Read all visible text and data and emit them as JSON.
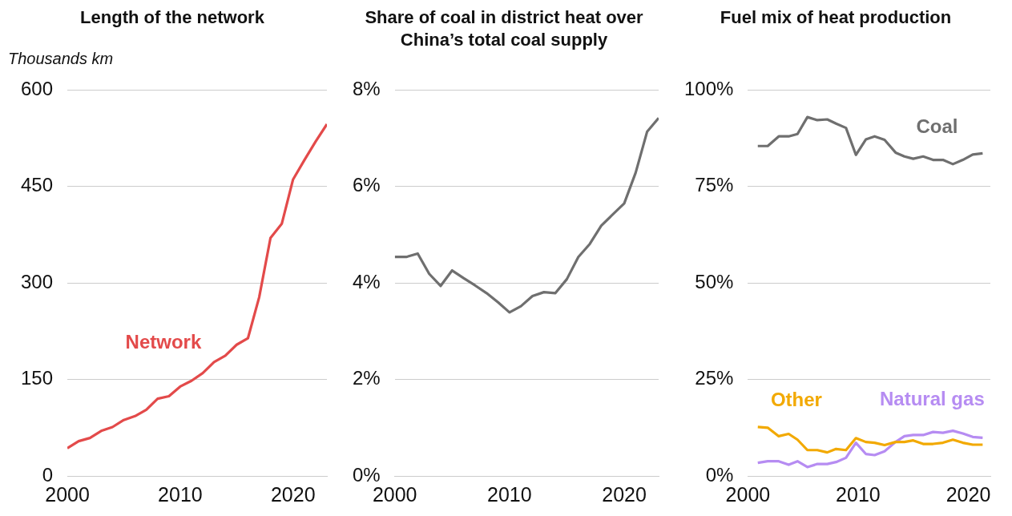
{
  "chart_data": [
    {
      "type": "line",
      "title": "Length of the network",
      "ylabel": "Thousands km",
      "x": [
        2000,
        2001,
        2002,
        2003,
        2004,
        2005,
        2006,
        2007,
        2008,
        2009,
        2010,
        2011,
        2012,
        2013,
        2014,
        2015,
        2016,
        2017,
        2018,
        2019,
        2020,
        2021,
        2022,
        2023
      ],
      "series": [
        {
          "name": "Network",
          "color": "#e34a4a",
          "values": [
            43,
            54,
            59,
            70,
            76,
            87,
            93,
            103,
            120,
            124,
            139,
            148,
            160,
            177,
            187,
            204,
            214,
            278,
            370,
            392,
            461,
            491,
            520,
            547
          ]
        }
      ],
      "xlim": [
        2000,
        2023
      ],
      "xticks": [
        2000,
        2010,
        2020
      ],
      "ylim": [
        0,
        600
      ],
      "yticks": [
        0,
        150,
        300,
        450,
        600
      ],
      "grid": "y"
    },
    {
      "type": "line",
      "title": "Share of coal in district heat over China’s total coal supply",
      "x": [
        2000,
        2001,
        2002,
        2003,
        2004,
        2005,
        2006,
        2007,
        2008,
        2009,
        2010,
        2011,
        2012,
        2013,
        2014,
        2015,
        2016,
        2017,
        2018,
        2019,
        2020,
        2021,
        2022,
        2023
      ],
      "series": [
        {
          "color": "#6f6f6f",
          "values": [
            4.54,
            4.54,
            4.61,
            4.19,
            3.94,
            4.26,
            4.1,
            3.95,
            3.79,
            3.6,
            3.39,
            3.52,
            3.73,
            3.81,
            3.79,
            4.08,
            4.54,
            4.81,
            5.19,
            5.42,
            5.65,
            6.29,
            7.14,
            7.42
          ]
        }
      ],
      "xlim": [
        2000,
        2023
      ],
      "xticks": [
        2000,
        2010,
        2020
      ],
      "ylim": [
        0,
        8
      ],
      "yticks": [
        {
          "value": 0,
          "label": "0%"
        },
        {
          "value": 2,
          "label": "2%"
        },
        {
          "value": 4,
          "label": "4%"
        },
        {
          "value": 6,
          "label": "6%"
        },
        {
          "value": 8,
          "label": "8%"
        }
      ],
      "grid": "y"
    },
    {
      "type": "line",
      "title": "Fuel mix of heat production",
      "x": [
        2000.9,
        2001.8,
        2002.8,
        2003.7,
        2004.5,
        2005.4,
        2006.3,
        2007.2,
        2008.0,
        2008.9,
        2009.8,
        2010.7,
        2011.5,
        2012.4,
        2013.4,
        2014.2,
        2015.0,
        2015.9,
        2016.8,
        2017.7,
        2018.6,
        2019.5,
        2020.4,
        2021.3
      ],
      "series": [
        {
          "name": "Coal",
          "color": "#6f6f6f",
          "values": [
            85.5,
            85.5,
            88,
            88,
            88.6,
            93,
            92.2,
            92.4,
            91.3,
            90.2,
            83.2,
            87.2,
            88,
            87.1,
            83.8,
            82.8,
            82.2,
            82.8,
            81.9,
            81.9,
            80.8,
            81.9,
            83.3,
            83.6
          ]
        },
        {
          "name": "Other",
          "color": "#f2a900",
          "values": [
            12.7,
            12.5,
            10.3,
            10.9,
            9.4,
            6.7,
            6.7,
            6.1,
            7.0,
            6.7,
            9.8,
            8.8,
            8.6,
            8.0,
            8.8,
            8.8,
            9.2,
            8.3,
            8.3,
            8.6,
            9.4,
            8.6,
            8.1,
            8.1
          ]
        },
        {
          "name": "Natural gas",
          "color": "#b68cf2",
          "values": [
            3.4,
            3.8,
            3.8,
            2.9,
            3.8,
            2.3,
            3.1,
            3.1,
            3.6,
            4.7,
            8.6,
            5.7,
            5.4,
            6.4,
            8.8,
            10.3,
            10.6,
            10.6,
            11.4,
            11.2,
            11.7,
            11.0,
            10.1,
            9.9
          ]
        }
      ],
      "xlim": [
        2000,
        2022
      ],
      "xticks": [
        2000,
        2010,
        2020
      ],
      "ylim": [
        0,
        100
      ],
      "yticks": [
        {
          "value": 0,
          "label": "0%"
        },
        {
          "value": 25,
          "label": "25%"
        },
        {
          "value": 50,
          "label": "50%"
        },
        {
          "value": 75,
          "label": "75%"
        },
        {
          "value": 100,
          "label": "100%"
        }
      ],
      "grid": "y"
    }
  ]
}
